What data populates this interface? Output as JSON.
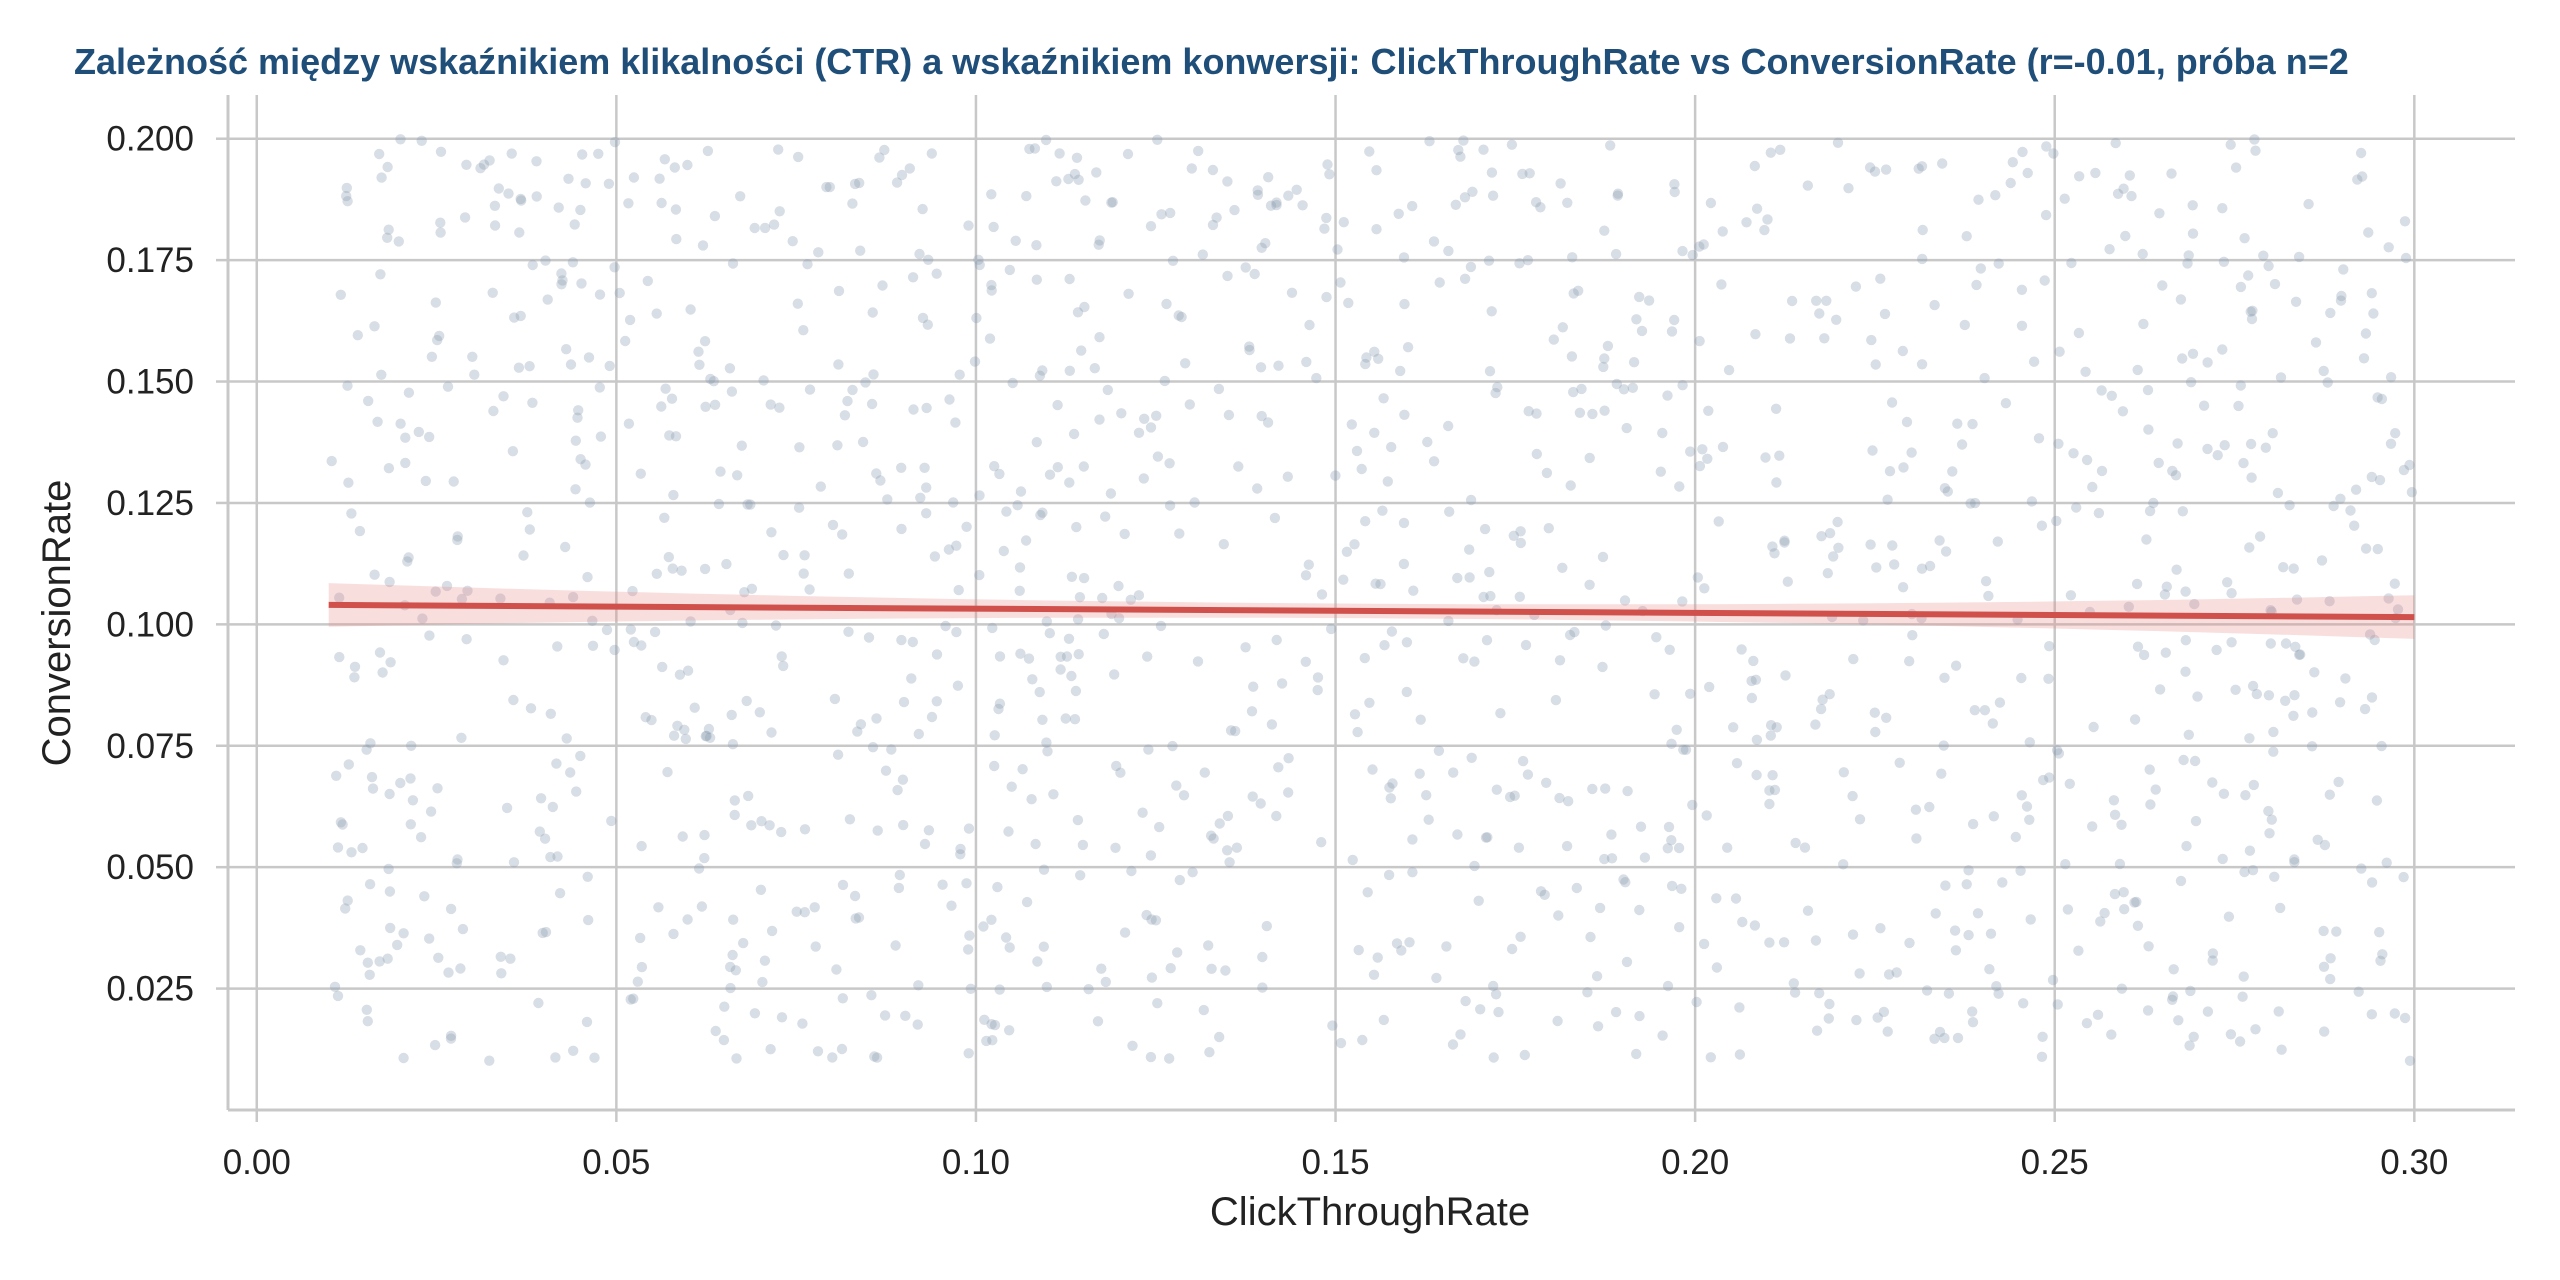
{
  "chart_data": {
    "type": "scatter",
    "title": "Zależność między wskaźnikiem klikalności (CTR) a wskaźnikiem konwersji: ClickThroughRate vs ConversionRate (r=-0.01, próba n=2",
    "xlabel": "ClickThroughRate",
    "ylabel": "ConversionRate",
    "xlim": [
      -0.004,
      0.314
    ],
    "ylim": [
      0.0,
      0.209
    ],
    "x_ticks": [
      "0.00",
      "0.05",
      "0.10",
      "0.15",
      "0.20",
      "0.25",
      "0.30"
    ],
    "y_ticks": [
      "0.025",
      "0.050",
      "0.075",
      "0.100",
      "0.125",
      "0.150",
      "0.175",
      "0.200"
    ],
    "grid": true,
    "legend": "none",
    "points_colour": "#8a9bb0",
    "points_count": 1500,
    "points_x_range": [
      0.01,
      0.3
    ],
    "points_y_range": [
      0.01,
      0.2
    ],
    "regression": {
      "colour": "#d0504c",
      "x": [
        0.01,
        0.3
      ],
      "y": [
        0.104,
        0.1015
      ],
      "ci_halfwidth_at_ends": 0.0045,
      "ci_halfwidth_center": 0.0015
    }
  }
}
